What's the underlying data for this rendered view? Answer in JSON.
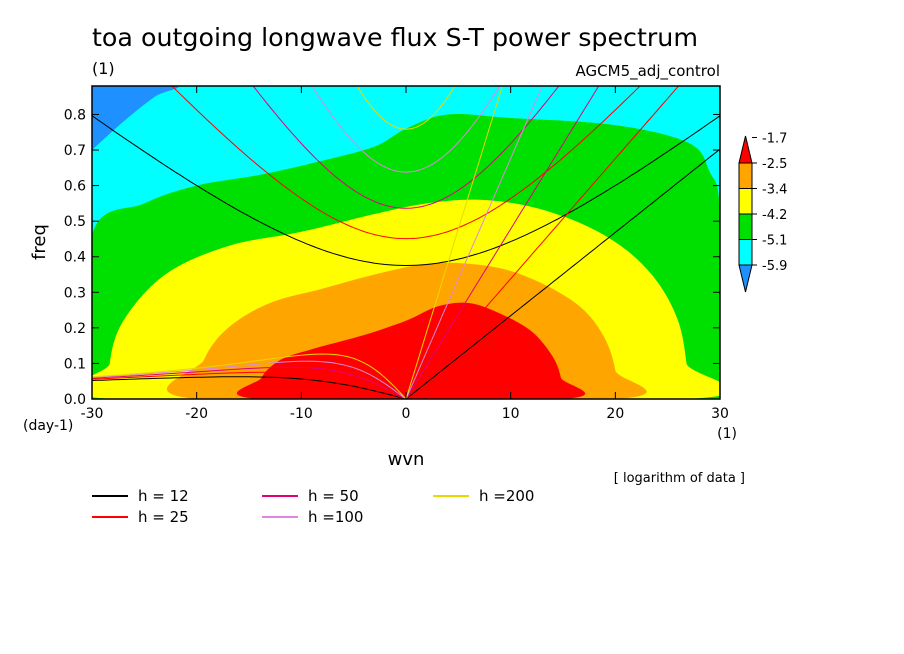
{
  "chart_data": {
    "type": "heatmap",
    "title": "toa outgoing longwave flux S-T power spectrum",
    "units_label": "(1)",
    "experiment": "AGCM5_adj_control",
    "xlabel": "wvn",
    "ylabel": "freq",
    "x_unit": "(1)",
    "y_unit": "(day-1)",
    "xlim": [
      -30,
      30
    ],
    "ylim": [
      0,
      0.88
    ],
    "x_ticks": [
      -30,
      -20,
      -10,
      0,
      10,
      20,
      30
    ],
    "x_tick_labels": [
      "-30",
      "-20",
      "-10",
      "0",
      "10",
      "20",
      "30"
    ],
    "y_ticks": [
      0,
      0.1,
      0.2,
      0.3,
      0.4,
      0.5,
      0.6,
      0.7,
      0.8
    ],
    "y_tick_labels": [
      "0.0",
      "0.1",
      "0.2",
      "0.3",
      "0.4",
      "0.5",
      "0.6",
      "0.7",
      "0.8"
    ],
    "note": "[ logarithm of data ]",
    "colorbar": {
      "levels": [
        -5.9,
        -5.1,
        -4.2,
        -3.4,
        -2.5,
        -1.7
      ],
      "labels": [
        "-5.9",
        "-5.1",
        "-4.2",
        "-3.4",
        "-2.5",
        "-1.7"
      ],
      "colors": [
        "#1e90ff",
        "#00ffff",
        "#00e000",
        "#ffff00",
        "#ffa500",
        "#ff0000"
      ]
    },
    "contour_regions": [
      {
        "level": -5.1,
        "color": "#00ffff",
        "points": [
          [
            -30,
            0.88
          ],
          [
            -22,
            0.88
          ],
          [
            -24,
            0.85
          ],
          [
            -27,
            0.78
          ],
          [
            -30,
            0.7
          ]
        ]
      },
      {
        "level": -4.2,
        "color": "#00e000",
        "points": [
          [
            -30,
            0
          ],
          [
            30,
            0
          ],
          [
            30,
            0.52
          ],
          [
            29,
            0.64
          ],
          [
            27,
            0.72
          ],
          [
            20,
            0.77
          ],
          [
            10,
            0.79
          ],
          [
            4,
            0.8
          ],
          [
            0,
            0.76
          ],
          [
            -3,
            0.71
          ],
          [
            -8,
            0.67
          ],
          [
            -14,
            0.63
          ],
          [
            -20,
            0.6
          ],
          [
            -25,
            0.55
          ],
          [
            -30,
            0.46
          ]
        ]
      },
      {
        "level": -3.4,
        "color": "#ffff00",
        "points": [
          [
            -28,
            0
          ],
          [
            27,
            0
          ],
          [
            26.8,
            0.1
          ],
          [
            26,
            0.22
          ],
          [
            24,
            0.33
          ],
          [
            21,
            0.42
          ],
          [
            17,
            0.49
          ],
          [
            12,
            0.54
          ],
          [
            7,
            0.56
          ],
          [
            2,
            0.55
          ],
          [
            -3,
            0.52
          ],
          [
            -10,
            0.47
          ],
          [
            -17,
            0.43
          ],
          [
            -23,
            0.35
          ],
          [
            -27,
            0.22
          ],
          [
            -28.3,
            0.1
          ]
        ]
      },
      {
        "level": -2.5,
        "color": "#ffa500",
        "points": [
          [
            -20,
            0
          ],
          [
            20,
            0
          ],
          [
            20,
            0.08
          ],
          [
            19,
            0.17
          ],
          [
            17,
            0.25
          ],
          [
            14,
            0.31
          ],
          [
            10,
            0.36
          ],
          [
            6,
            0.38
          ],
          [
            2,
            0.38
          ],
          [
            -3,
            0.35
          ],
          [
            -8,
            0.31
          ],
          [
            -13,
            0.27
          ],
          [
            -17,
            0.2
          ],
          [
            -19.3,
            0.11
          ]
        ]
      },
      {
        "level": -1.7,
        "color": "#ff0000",
        "points": [
          [
            -14,
            0
          ],
          [
            15,
            0
          ],
          [
            14.8,
            0.06
          ],
          [
            14,
            0.12
          ],
          [
            12,
            0.19
          ],
          [
            9,
            0.24
          ],
          [
            6,
            0.27
          ],
          [
            3,
            0.26
          ],
          [
            0,
            0.22
          ],
          [
            -4,
            0.18
          ],
          [
            -9,
            0.14
          ],
          [
            -12,
            0.11
          ],
          [
            -13.8,
            0.06
          ]
        ]
      }
    ],
    "series": [
      {
        "name": "h = 12",
        "color": "#000000",
        "equivalent_depth_m": 12
      },
      {
        "name": "h = 25",
        "color": "#ff0000",
        "equivalent_depth_m": 25
      },
      {
        "name": "h = 50",
        "color": "#e0007a",
        "equivalent_depth_m": 50
      },
      {
        "name": "h =100",
        "color": "#dd88dd",
        "equivalent_depth_m": 100
      },
      {
        "name": "h =200",
        "color": "#e8d800",
        "equivalent_depth_m": 200
      }
    ],
    "grid": false,
    "legend_position": "bottom-left"
  }
}
